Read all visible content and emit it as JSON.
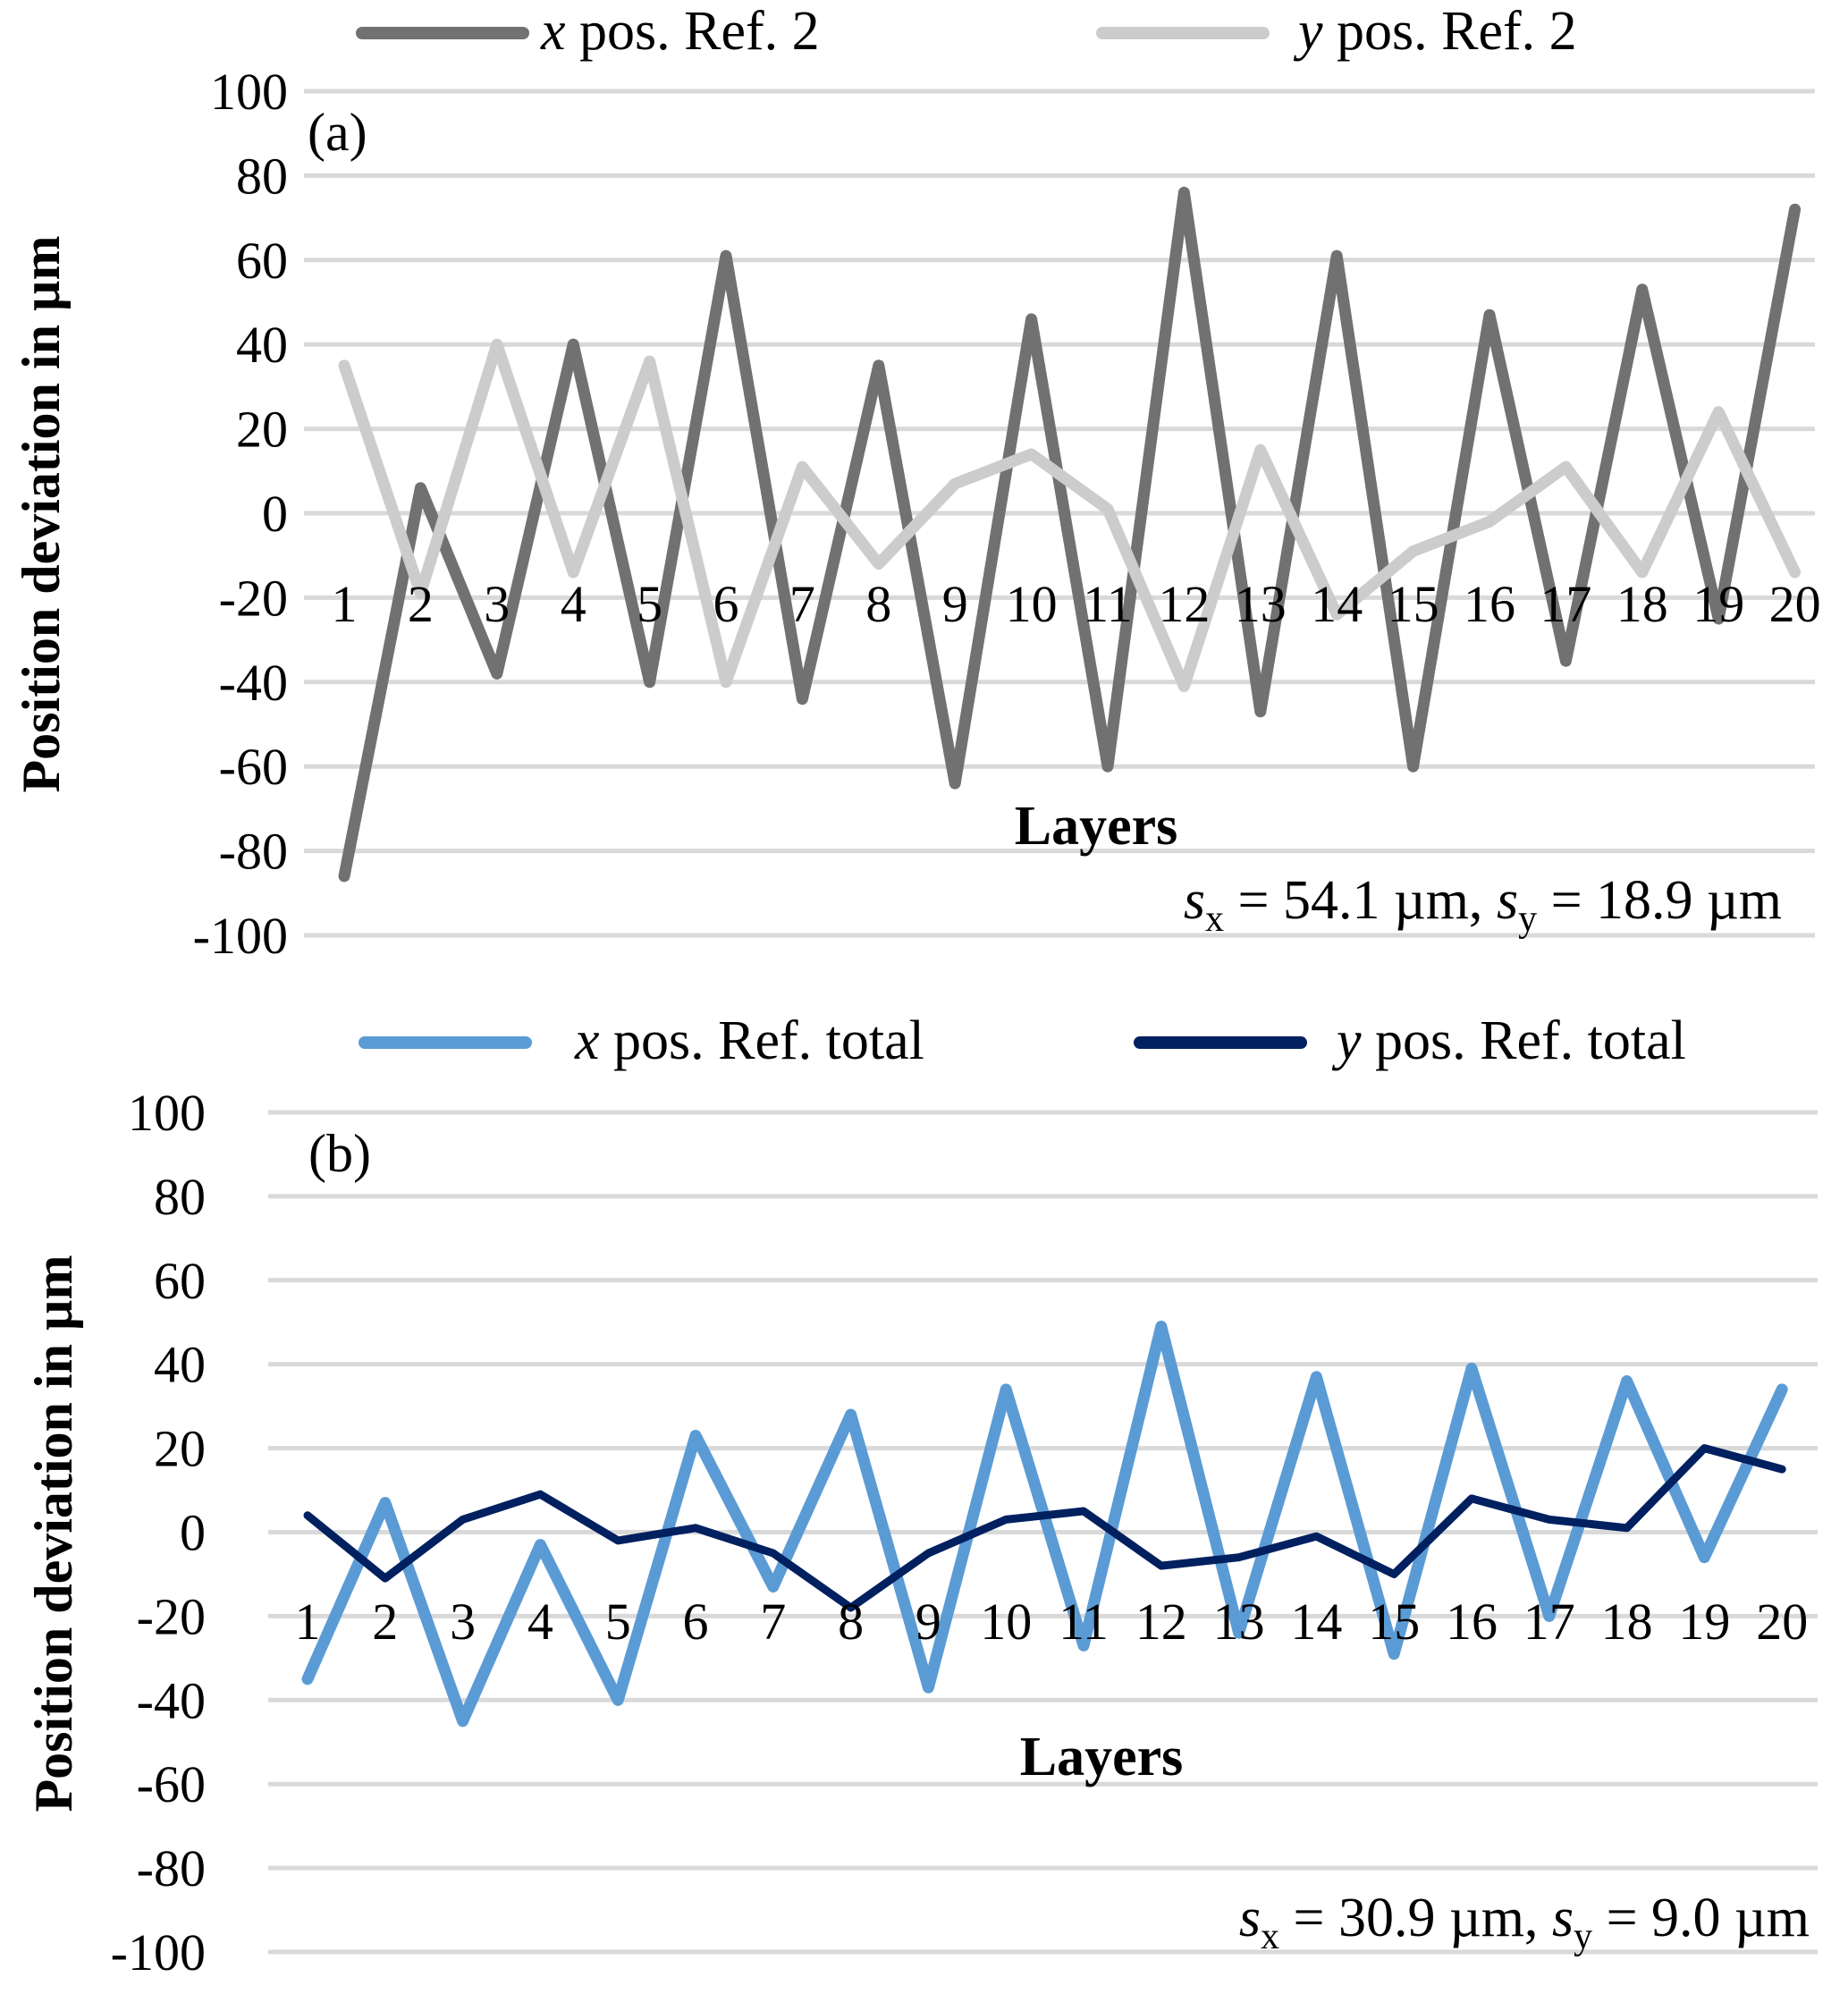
{
  "chart_data": [
    {
      "type": "line",
      "panel_label": "(a)",
      "title": "",
      "xlabel": "Layers",
      "ylabel": "Position deviation in µm",
      "ylim": [
        -100,
        100
      ],
      "yticks": [
        100,
        80,
        60,
        40,
        20,
        0,
        -20,
        -40,
        -60,
        -80,
        -100
      ],
      "grid": true,
      "legend_position": "top",
      "categories": [
        "1",
        "2",
        "3",
        "4",
        "5",
        "6",
        "7",
        "8",
        "9",
        "10",
        "11",
        "12",
        "13",
        "14",
        "15",
        "16",
        "17",
        "18",
        "19",
        "20"
      ],
      "series": [
        {
          "name_italic": "x",
          "name_rest": " pos. Ref. 2",
          "color": "#717171",
          "values": [
            -86,
            6,
            -38,
            40,
            -40,
            61,
            -44,
            35,
            -64,
            46,
            -60,
            76,
            -47,
            61,
            -60,
            47,
            -35,
            53,
            -25,
            72
          ]
        },
        {
          "name_italic": "y",
          "name_rest": " pos. Ref. 2",
          "color": "#cccccc",
          "values": [
            35,
            -19,
            40,
            -14,
            36,
            -40,
            11,
            -12,
            7,
            14,
            1,
            -41,
            15,
            -24,
            -9,
            -2,
            11,
            -14,
            24,
            -14
          ]
        }
      ],
      "annotation": {
        "s_x_label": "s",
        "s_x_sub": "x",
        "s_x_text": " = 54.1 µm, ",
        "s_y_label": "s",
        "s_y_sub": "y",
        "s_y_text": " = 18.9 µm"
      }
    },
    {
      "type": "line",
      "panel_label": "(b)",
      "title": "",
      "xlabel": "Layers",
      "ylabel": "Position deviation in µm",
      "ylim": [
        -100,
        100
      ],
      "yticks": [
        100,
        80,
        60,
        40,
        20,
        0,
        -20,
        -40,
        -60,
        -80,
        -100
      ],
      "grid": true,
      "legend_position": "top",
      "categories": [
        "1",
        "2",
        "3",
        "4",
        "5",
        "6",
        "7",
        "8",
        "9",
        "10",
        "11",
        "12",
        "13",
        "14",
        "15",
        "16",
        "17",
        "18",
        "19",
        "20"
      ],
      "series": [
        {
          "name_italic": "x",
          "name_rest": " pos. Ref. total",
          "color": "#5b9bd5",
          "values": [
            -35,
            7,
            -45,
            -3,
            -40,
            23,
            -13,
            28,
            -37,
            34,
            -27,
            49,
            -24,
            37,
            -29,
            39,
            -20,
            36,
            -6,
            34
          ]
        },
        {
          "name_italic": "y",
          "name_rest": " pos. Ref. total",
          "color": "#002060",
          "values": [
            4,
            -11,
            3,
            9,
            -2,
            1,
            -5,
            -18,
            -5,
            3,
            5,
            -8,
            -6,
            -1,
            -10,
            8,
            3,
            1,
            20,
            15
          ]
        }
      ],
      "annotation": {
        "s_x_label": "s",
        "s_x_sub": "x",
        "s_x_text": " = 30.9 µm, ",
        "s_y_label": "s",
        "s_y_sub": "y",
        "s_y_text": " = 9.0 µm"
      }
    }
  ]
}
